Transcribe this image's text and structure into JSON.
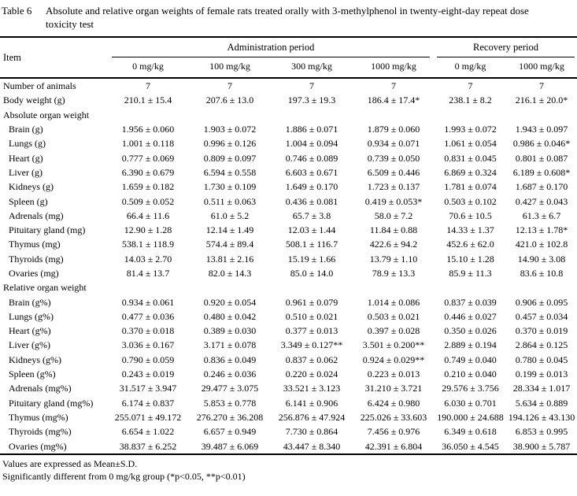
{
  "caption": {
    "label": "Table 6",
    "text": "Absolute and relative organ weights of female rats treated orally with 3-methylphenol in twenty-eight-day repeat dose toxicity test"
  },
  "table": {
    "header": {
      "item_label": "Item",
      "groups": [
        {
          "label": "Administration period",
          "columns": [
            "0 mg/kg",
            "100 mg/kg",
            "300 mg/kg",
            "1000 mg/kg"
          ]
        },
        {
          "label": "Recovery period",
          "columns": [
            "0 mg/kg",
            "1000 mg/kg"
          ]
        }
      ]
    },
    "rows": [
      {
        "label": "Number of animals",
        "section": false,
        "indent": false,
        "values": [
          "7",
          "7",
          "7",
          "7",
          "7",
          "7"
        ]
      },
      {
        "label": "Body weight (g)",
        "section": false,
        "indent": false,
        "values": [
          "210.1 ± 15.4",
          "207.6 ± 13.0",
          "197.3 ± 19.3",
          "186.4 ± 17.4*",
          "238.1 ± 8.2",
          "216.1 ± 20.0*"
        ]
      },
      {
        "label": "Absolute organ weight",
        "section": true,
        "indent": false,
        "values": []
      },
      {
        "label": "Brain (g)",
        "section": false,
        "indent": true,
        "values": [
          "1.956 ± 0.060",
          "1.903 ± 0.072",
          "1.886 ± 0.071",
          "1.879 ± 0.060",
          "1.993 ± 0.072",
          "1.943 ± 0.097"
        ]
      },
      {
        "label": "Lungs (g)",
        "section": false,
        "indent": true,
        "values": [
          "1.001 ± 0.118",
          "0.996 ± 0.126",
          "1.004 ± 0.094",
          "0.934 ± 0.071",
          "1.061 ± 0.054",
          "0.986 ± 0.046*"
        ]
      },
      {
        "label": "Heart (g)",
        "section": false,
        "indent": true,
        "values": [
          "0.777 ± 0.069",
          "0.809 ± 0.097",
          "0.746 ± 0.089",
          "0.739 ± 0.050",
          "0.831 ± 0.045",
          "0.801 ± 0.087"
        ]
      },
      {
        "label": "Liver (g)",
        "section": false,
        "indent": true,
        "values": [
          "6.390 ± 0.679",
          "6.594 ± 0.558",
          "6.603 ± 0.671",
          "6.509 ± 0.446",
          "6.869 ± 0.324",
          "6.189 ± 0.608*"
        ]
      },
      {
        "label": "Kidneys (g)",
        "section": false,
        "indent": true,
        "values": [
          "1.659 ± 0.182",
          "1.730 ± 0.109",
          "1.649 ± 0.170",
          "1.723 ± 0.137",
          "1.781 ± 0.074",
          "1.687 ± 0.170"
        ]
      },
      {
        "label": "Spleen (g)",
        "section": false,
        "indent": true,
        "values": [
          "0.509 ± 0.052",
          "0.511 ± 0.063",
          "0.436 ± 0.081",
          "0.419 ± 0.053*",
          "0.503 ± 0.102",
          "0.427 ± 0.043"
        ]
      },
      {
        "label": "Adrenals (mg)",
        "section": false,
        "indent": true,
        "values": [
          "66.4 ± 11.6",
          "61.0 ± 5.2",
          "65.7 ± 3.8",
          "58.0 ± 7.2",
          "70.6 ± 10.5",
          "61.3 ± 6.7"
        ]
      },
      {
        "label": "Pituitary gland (mg)",
        "section": false,
        "indent": true,
        "values": [
          "12.90 ± 1.28",
          "12.14 ± 1.49",
          "12.03 ± 1.44",
          "11.84 ± 0.88",
          "14.33 ± 1.37",
          "12.13 ± 1.78*"
        ]
      },
      {
        "label": "Thymus (mg)",
        "section": false,
        "indent": true,
        "values": [
          "538.1 ± 118.9",
          "574.4 ± 89.4",
          "508.1 ± 116.7",
          "422.6 ± 94.2",
          "452.6 ± 62.0",
          "421.0 ± 102.8"
        ]
      },
      {
        "label": "Thyroids (mg)",
        "section": false,
        "indent": true,
        "values": [
          "14.03 ± 2.70",
          "13.81 ± 2.16",
          "15.19 ± 1.66",
          "13.79 ± 1.10",
          "15.10 ± 1.28",
          "14.90 ± 3.08"
        ]
      },
      {
        "label": "Ovaries (mg)",
        "section": false,
        "indent": true,
        "values": [
          "81.4 ± 13.7",
          "82.0 ± 14.3",
          "85.0 ± 14.0",
          "78.9 ± 13.3",
          "85.9 ± 11.3",
          "83.6 ± 10.8"
        ]
      },
      {
        "label": "Relative organ weight",
        "section": true,
        "indent": false,
        "values": []
      },
      {
        "label": "Brain (g%)",
        "section": false,
        "indent": true,
        "values": [
          "0.934 ± 0.061",
          "0.920 ± 0.054",
          "0.961 ± 0.079",
          "1.014 ± 0.086",
          "0.837 ± 0.039",
          "0.906 ± 0.095"
        ]
      },
      {
        "label": "Lungs (g%)",
        "section": false,
        "indent": true,
        "values": [
          "0.477 ± 0.036",
          "0.480 ± 0.042",
          "0.510 ± 0.021",
          "0.503 ± 0.021",
          "0.446 ± 0.027",
          "0.457 ± 0.034"
        ]
      },
      {
        "label": "Heart (g%)",
        "section": false,
        "indent": true,
        "values": [
          "0.370 ± 0.018",
          "0.389 ± 0.030",
          "0.377 ± 0.013",
          "0.397 ± 0.028",
          "0.350 ± 0.026",
          "0.370 ± 0.019"
        ]
      },
      {
        "label": "Liver (g%)",
        "section": false,
        "indent": true,
        "values": [
          "3.036 ± 0.167",
          "3.171 ± 0.078",
          "3.349 ± 0.127**",
          "3.501 ± 0.200**",
          "2.889 ± 0.194",
          "2.864 ± 0.125"
        ]
      },
      {
        "label": "Kidneys (g%)",
        "section": false,
        "indent": true,
        "values": [
          "0.790 ± 0.059",
          "0.836 ± 0.049",
          "0.837 ± 0.062",
          "0.924 ± 0.029**",
          "0.749 ± 0.040",
          "0.780 ± 0.045"
        ]
      },
      {
        "label": "Spleen (g%)",
        "section": false,
        "indent": true,
        "values": [
          "0.243 ± 0.019",
          "0.246 ± 0.036",
          "0.220 ± 0.024",
          "0.223 ± 0.013",
          "0.210 ± 0.040",
          "0.199 ± 0.013"
        ]
      },
      {
        "label": "Adrenals (mg%)",
        "section": false,
        "indent": true,
        "values": [
          "31.517 ± 3.947",
          "29.477 ± 3.075",
          "33.521 ± 3.123",
          "31.210 ± 3.721",
          "29.576 ± 3.756",
          "28.334 ± 1.017"
        ]
      },
      {
        "label": "Pituitary gland (mg%)",
        "section": false,
        "indent": true,
        "values": [
          "6.174 ± 0.837",
          "5.853 ± 0.778",
          "6.141 ± 0.906",
          "6.424 ± 0.980",
          "6.030 ± 0.701",
          "5.634 ± 0.889"
        ]
      },
      {
        "label": "Thymus (mg%)",
        "section": false,
        "indent": true,
        "values": [
          "255.071 ± 49.172",
          "276.270 ± 36.208",
          "256.876 ± 47.924",
          "225.026 ± 33.603",
          "190.000 ± 24.688",
          "194.126 ± 43.130"
        ]
      },
      {
        "label": "Thyroids (mg%)",
        "section": false,
        "indent": true,
        "values": [
          "6.654 ± 1.022",
          "6.657 ± 0.949",
          "7.730 ± 0.864",
          "7.456 ± 0.976",
          "6.349 ± 0.618",
          "6.853 ± 0.995"
        ]
      },
      {
        "label": "Ovaries (mg%)",
        "section": false,
        "indent": true,
        "values": [
          "38.837 ± 6.252",
          "39.487 ± 6.069",
          "43.447 ± 8.340",
          "42.391 ± 6.804",
          "36.050 ± 4.545",
          "38.900 ± 5.787"
        ]
      }
    ]
  },
  "footnotes": [
    "Values are expressed as Mean±S.D.",
    "Significantly different from 0 mg/kg group (*p<0.05, **p<0.01)"
  ]
}
